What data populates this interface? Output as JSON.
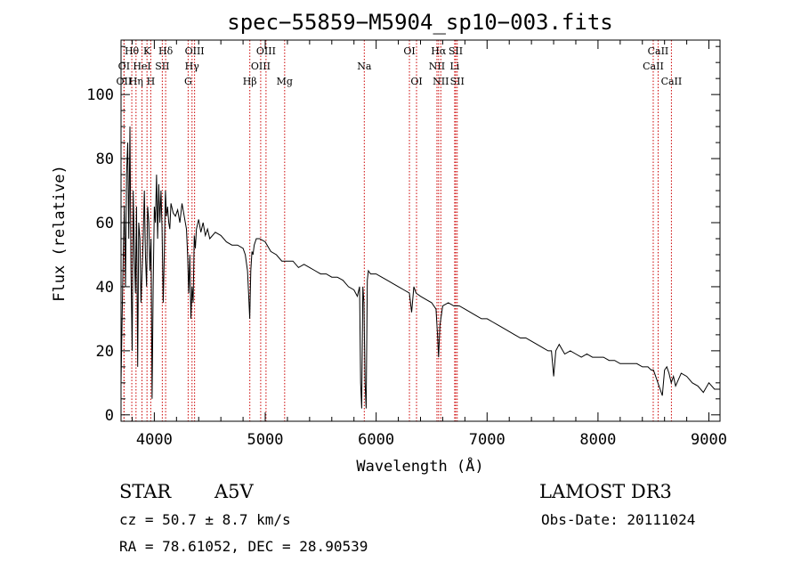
{
  "chart_data": {
    "type": "line",
    "title": "spec−55859−M5904_sp10−003.fits",
    "xlabel": "Wavelength (Å)",
    "ylabel": "Flux (relative)",
    "xlim": [
      3700,
      9100
    ],
    "ylim": [
      -2,
      117
    ],
    "x_ticks": [
      4000,
      5000,
      6000,
      7000,
      8000,
      9000
    ],
    "y_ticks": [
      0,
      20,
      40,
      60,
      80,
      100
    ],
    "series": [
      {
        "name": "flux",
        "x": [
          3700,
          3710,
          3720,
          3730,
          3740,
          3750,
          3760,
          3770,
          3780,
          3790,
          3800,
          3810,
          3820,
          3830,
          3840,
          3850,
          3860,
          3870,
          3880,
          3890,
          3900,
          3910,
          3920,
          3930,
          3940,
          3950,
          3960,
          3970,
          3980,
          3990,
          4000,
          4010,
          4020,
          4030,
          4040,
          4050,
          4060,
          4070,
          4080,
          4090,
          4100,
          4110,
          4120,
          4130,
          4140,
          4150,
          4170,
          4190,
          4210,
          4230,
          4250,
          4270,
          4290,
          4300,
          4310,
          4320,
          4330,
          4340,
          4350,
          4360,
          4370,
          4380,
          4400,
          4420,
          4440,
          4460,
          4480,
          4500,
          4550,
          4600,
          4650,
          4700,
          4750,
          4800,
          4820,
          4840,
          4850,
          4860,
          4870,
          4880,
          4890,
          4900,
          4920,
          4950,
          5000,
          5050,
          5100,
          5150,
          5200,
          5250,
          5300,
          5350,
          5400,
          5450,
          5500,
          5550,
          5600,
          5650,
          5700,
          5750,
          5800,
          5830,
          5850,
          5860,
          5870,
          5880,
          5890,
          5900,
          5910,
          5920,
          5930,
          5950,
          6000,
          6050,
          6100,
          6150,
          6200,
          6250,
          6300,
          6320,
          6340,
          6360,
          6400,
          6450,
          6500,
          6540,
          6555,
          6563,
          6575,
          6600,
          6650,
          6700,
          6750,
          6800,
          6850,
          6900,
          6950,
          7000,
          7050,
          7100,
          7150,
          7200,
          7250,
          7300,
          7350,
          7400,
          7450,
          7500,
          7550,
          7580,
          7600,
          7620,
          7650,
          7700,
          7750,
          7800,
          7850,
          7900,
          7950,
          8000,
          8050,
          8100,
          8150,
          8200,
          8250,
          8300,
          8350,
          8400,
          8450,
          8480,
          8500,
          8520,
          8540,
          8560,
          8580,
          8600,
          8620,
          8640,
          8660,
          8680,
          8700,
          8750,
          8800,
          8850,
          8900,
          8950,
          9000,
          9050,
          9100
        ],
        "y": [
          10,
          30,
          50,
          65,
          40,
          75,
          85,
          55,
          90,
          45,
          20,
          70,
          50,
          38,
          65,
          15,
          60,
          55,
          35,
          45,
          55,
          70,
          50,
          40,
          65,
          60,
          45,
          55,
          5,
          40,
          65,
          60,
          75,
          55,
          72,
          60,
          70,
          58,
          35,
          50,
          70,
          62,
          65,
          60,
          58,
          66,
          63,
          62,
          64,
          60,
          66,
          62,
          58,
          50,
          38,
          50,
          30,
          40,
          35,
          56,
          52,
          58,
          61,
          57,
          60,
          56,
          58,
          55,
          57,
          56,
          54,
          53,
          53,
          52,
          50,
          45,
          38,
          30,
          45,
          51,
          50,
          53,
          55,
          55,
          54,
          51,
          50,
          48,
          48,
          48,
          46,
          47,
          46,
          45,
          44,
          44,
          43,
          43,
          42,
          40,
          39,
          37,
          40,
          10,
          2,
          40,
          35,
          10,
          2,
          42,
          45,
          44,
          44,
          43,
          42,
          41,
          40,
          39,
          38,
          32,
          40,
          38,
          37,
          36,
          35,
          33,
          24,
          18,
          28,
          34,
          35,
          34,
          34,
          33,
          32,
          31,
          30,
          30,
          29,
          28,
          27,
          26,
          25,
          24,
          24,
          23,
          22,
          21,
          20,
          20,
          12,
          20,
          22,
          19,
          20,
          19,
          18,
          19,
          18,
          18,
          18,
          17,
          17,
          16,
          16,
          16,
          16,
          15,
          15,
          14,
          14,
          12,
          10,
          8,
          6,
          14,
          15,
          13,
          10,
          12,
          9,
          13,
          12,
          10,
          9,
          7,
          10,
          8,
          8
        ]
      }
    ],
    "spectral_lines": [
      {
        "label": "Hθ",
        "x": 3797,
        "row": 1
      },
      {
        "label": "K",
        "x": 3934,
        "row": 1
      },
      {
        "label": "Hδ",
        "x": 4102,
        "row": 1
      },
      {
        "label": "OIII",
        "x": 4363,
        "row": 1
      },
      {
        "label": "OIII",
        "x": 5007,
        "row": 1
      },
      {
        "label": "OI",
        "x": 6300,
        "row": 1
      },
      {
        "label": "Hα",
        "x": 6563,
        "row": 1
      },
      {
        "label": "SII",
        "x": 6717,
        "row": 1
      },
      {
        "label": "CaII",
        "x": 8542,
        "row": 1
      },
      {
        "label": "OI",
        "x": 3727,
        "row": 2
      },
      {
        "label": "HeI",
        "x": 3889,
        "row": 2
      },
      {
        "label": "SII",
        "x": 4072,
        "row": 2
      },
      {
        "label": "Hγ",
        "x": 4340,
        "row": 2
      },
      {
        "label": "OIII",
        "x": 4959,
        "row": 2
      },
      {
        "label": "Na",
        "x": 5893,
        "row": 2
      },
      {
        "label": "NII",
        "x": 6548,
        "row": 2
      },
      {
        "label": "Li",
        "x": 6708,
        "row": 2
      },
      {
        "label": "CaII",
        "x": 8498,
        "row": 2
      },
      {
        "label": "OII",
        "x": 3727,
        "row": 3
      },
      {
        "label": "Hη",
        "x": 3835,
        "row": 3
      },
      {
        "label": "H",
        "x": 3968,
        "row": 3
      },
      {
        "label": "G",
        "x": 4305,
        "row": 3
      },
      {
        "label": "Hβ",
        "x": 4861,
        "row": 3
      },
      {
        "label": "Mg",
        "x": 5175,
        "row": 3
      },
      {
        "label": "OI",
        "x": 6364,
        "row": 3
      },
      {
        "label": "NII",
        "x": 6583,
        "row": 3
      },
      {
        "label": "SII",
        "x": 6731,
        "row": 3
      },
      {
        "label": "CaII",
        "x": 8662,
        "row": 3
      }
    ]
  },
  "info": {
    "object_class": "STAR",
    "subclass": "A5V",
    "survey": "LAMOST DR3",
    "redshift": "cz = 50.7 ± 8.7 km/s",
    "obs_date": "Obs-Date: 20111024",
    "coords": "RA =  78.61052, DEC =  28.90539"
  },
  "colors": {
    "line_marker": "#cc0000",
    "spectrum": "#000000",
    "axes": "#000000"
  }
}
